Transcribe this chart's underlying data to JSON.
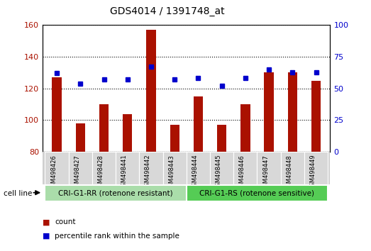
{
  "title": "GDS4014 / 1391748_at",
  "categories": [
    "GSM498426",
    "GSM498427",
    "GSM498428",
    "GSM498441",
    "GSM498442",
    "GSM498443",
    "GSM498444",
    "GSM498445",
    "GSM498446",
    "GSM498447",
    "GSM498448",
    "GSM498449"
  ],
  "counts": [
    127,
    98,
    110,
    104,
    157,
    97,
    115,
    97,
    110,
    130,
    130,
    125
  ],
  "percentile_ranks": [
    62,
    54,
    57,
    57,
    67,
    57,
    58,
    52,
    58,
    65,
    63,
    63
  ],
  "bar_color": "#aa1100",
  "dot_color": "#0000cc",
  "ylim_left": [
    80,
    160
  ],
  "ylim_right": [
    0,
    100
  ],
  "yticks_left": [
    80,
    100,
    120,
    140,
    160
  ],
  "yticks_right": [
    0,
    25,
    50,
    75,
    100
  ],
  "group1_label": "CRI-G1-RR (rotenone resistant)",
  "group2_label": "CRI-G1-RS (rotenone sensitive)",
  "group1_color": "#aaddaa",
  "group2_color": "#55cc55",
  "cell_line_label": "cell line",
  "legend_count_label": "count",
  "legend_percentile_label": "percentile rank within the sample",
  "plot_bg_color": "#ffffff",
  "title_fontsize": 10,
  "bar_width": 0.4
}
